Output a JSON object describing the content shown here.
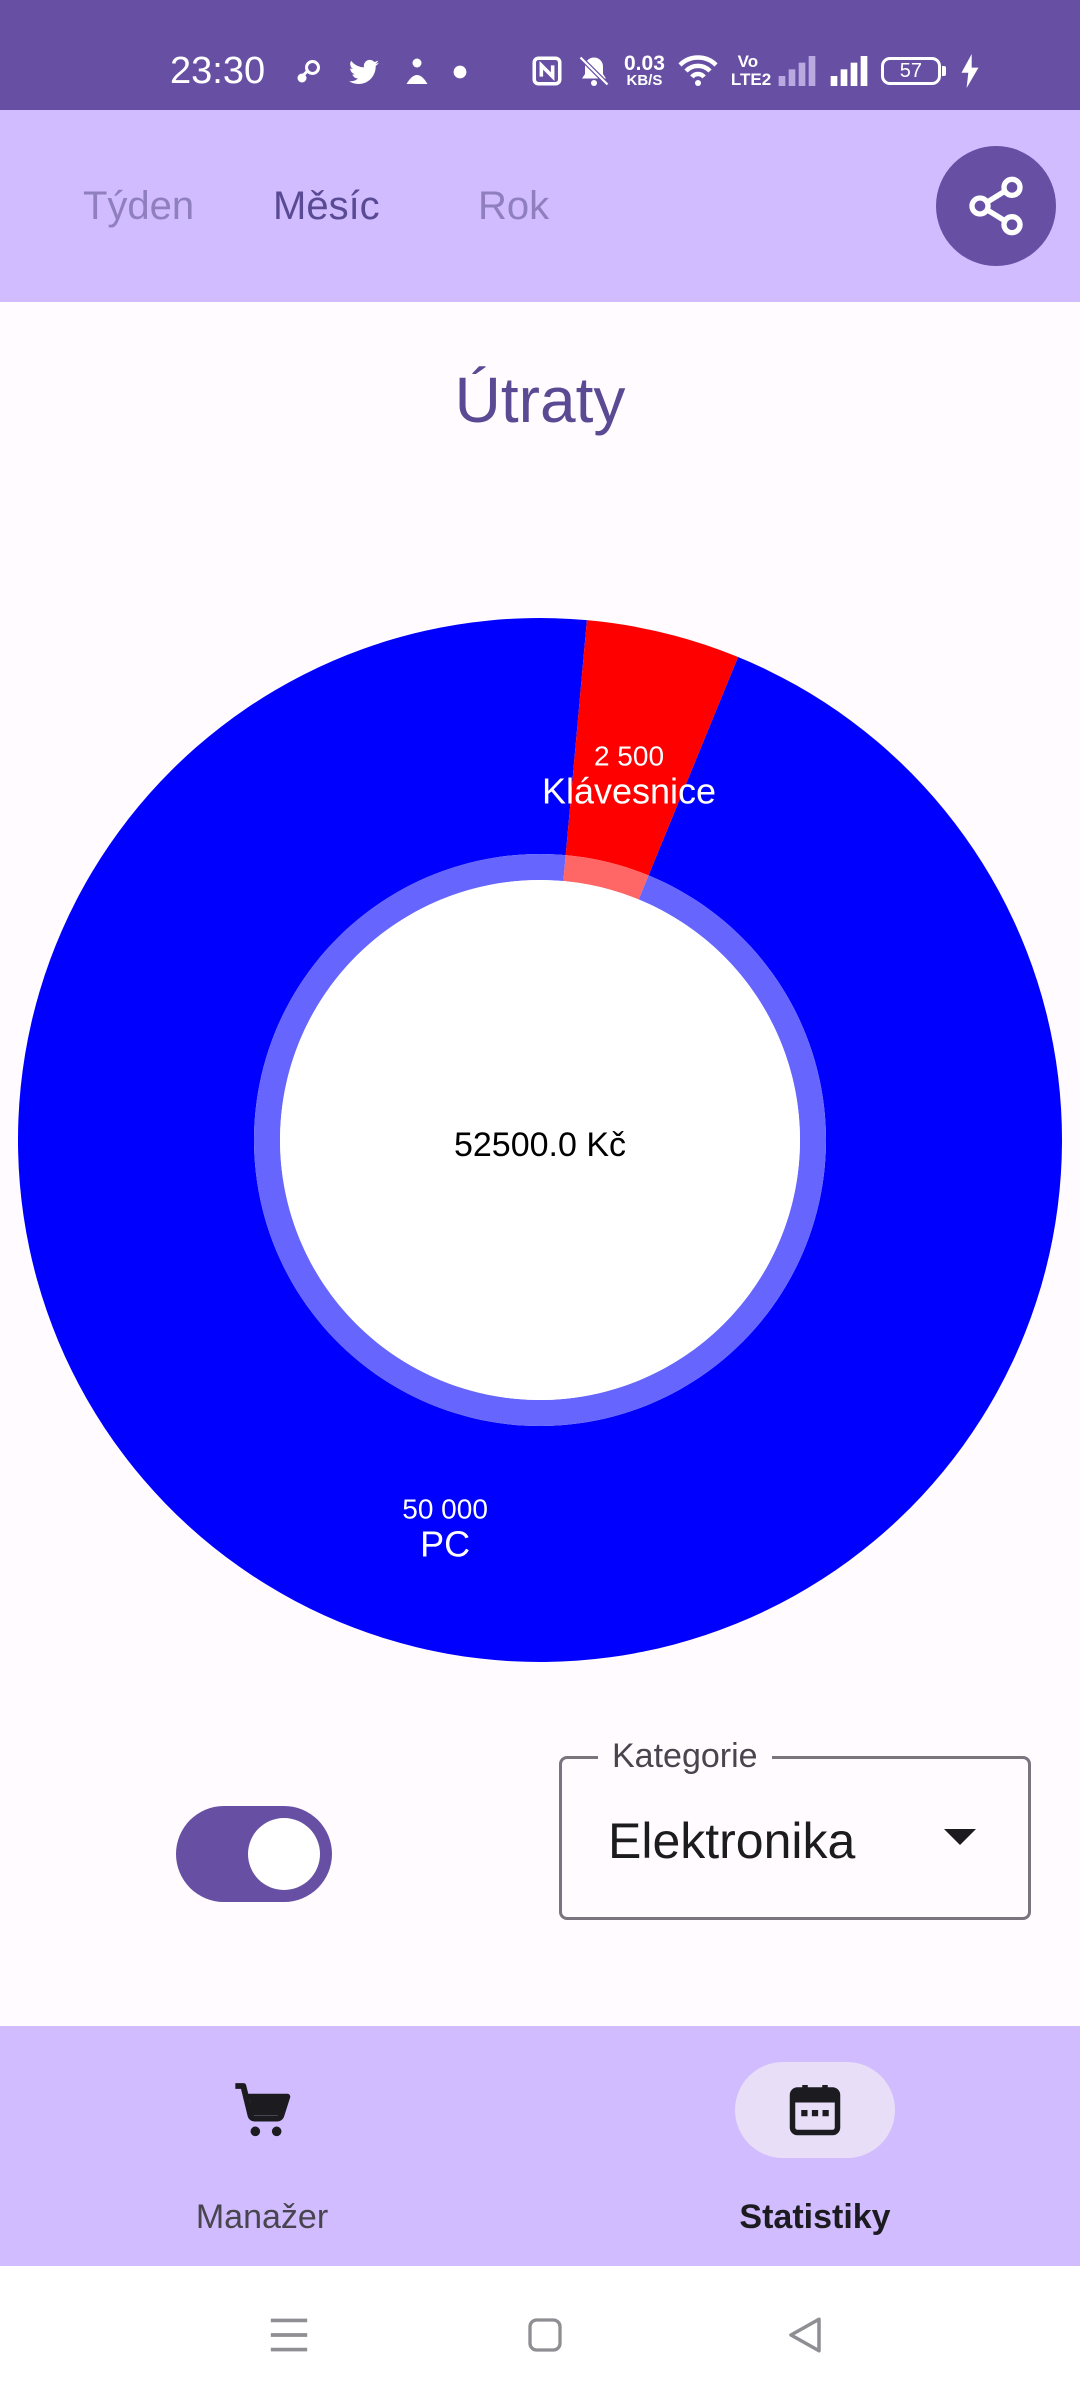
{
  "status_bar": {
    "time": "23:30",
    "net_speed_value": "0.03",
    "net_speed_unit": "KB/S",
    "volte_label": "Vo LTE2",
    "battery_level": "57",
    "icons": [
      "steam-icon",
      "twitter-icon",
      "notification-icon",
      "dot-icon",
      "nfc-icon",
      "bell-off-icon",
      "wifi-icon",
      "signal-icon",
      "battery-icon",
      "charging-icon"
    ]
  },
  "top_bar": {
    "tabs": [
      {
        "label": "Týden",
        "active": false
      },
      {
        "label": "Měsíc",
        "active": true
      },
      {
        "label": "Rok",
        "active": false
      }
    ],
    "share_icon": "share-icon"
  },
  "title": "Útraty",
  "chart_data": {
    "type": "pie",
    "title": "Útraty",
    "center_label": "52500.0 Kč",
    "slices": [
      {
        "label": "PC",
        "value": 50000,
        "value_label": "50 000",
        "color": "#0000ff",
        "inner_color": "#6666ff"
      },
      {
        "label": "Klávesnice",
        "value": 2500,
        "value_label": "2 500",
        "color": "#ff0000",
        "inner_color": "#ff6666"
      }
    ]
  },
  "controls": {
    "toggle_on": true,
    "category_label": "Kategorie",
    "category_value": "Elektronika"
  },
  "bottom_nav": {
    "items": [
      {
        "label": "Manažer",
        "icon": "shopping-cart-icon",
        "active": false
      },
      {
        "label": "Statistiky",
        "icon": "calendar-icon",
        "active": true
      }
    ]
  },
  "system_nav": {
    "icons": [
      "menu-icon",
      "home-icon",
      "back-icon"
    ]
  },
  "colors": {
    "primary": "#6750a4",
    "primary_container": "#d0bcff",
    "nav_indicator": "#e8def8",
    "background": "#fffbfe"
  }
}
